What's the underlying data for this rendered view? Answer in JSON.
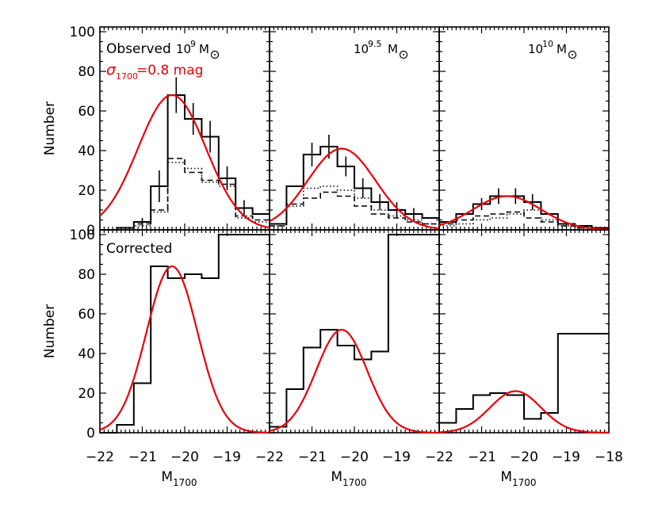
{
  "figure": {
    "ylabel": "Number",
    "xlabel": "M",
    "xlabel_sub": "1700"
  },
  "chart_data": [
    {
      "type": "histogram",
      "row": "observed",
      "col": 0,
      "panel_label": "Observed",
      "mass_label": {
        "base": "10",
        "exp": "9",
        "unit": "M"
      },
      "fit_label": {
        "sym": "σ",
        "sub": "1700",
        "text": "=0.8  mag"
      },
      "xlim": [
        -22,
        -18
      ],
      "ylim": [
        0,
        100
      ],
      "bin_edges": [
        -22.0,
        -21.6,
        -21.2,
        -20.8,
        -20.4,
        -20.0,
        -19.6,
        -19.2,
        -18.8,
        -18.4
      ],
      "series": [
        {
          "values": [
            0,
            1,
            4,
            22,
            68,
            56,
            47,
            26,
            11,
            8
          ],
          "style": "solid",
          "errors": [
            0,
            0,
            2,
            8,
            9,
            8,
            8,
            6,
            4,
            0
          ]
        },
        {
          "values": [
            0,
            1,
            3,
            10,
            36,
            29,
            25,
            23,
            7,
            5
          ],
          "style": "dashed"
        },
        {
          "values": [
            0,
            1,
            2,
            9,
            34,
            31,
            24,
            22,
            6,
            4
          ],
          "style": "dotted"
        }
      ],
      "gaussian": {
        "amplitude": 68,
        "mean": -20.3,
        "sigma": 0.8,
        "color": "#e8000b"
      }
    },
    {
      "type": "histogram",
      "row": "observed",
      "col": 1,
      "mass_label": {
        "base": "10",
        "exp": "9.5",
        "unit": "M"
      },
      "xlim": [
        -22,
        -18
      ],
      "ylim": [
        0,
        100
      ],
      "bin_edges": [
        -22.0,
        -21.6,
        -21.2,
        -20.8,
        -20.4,
        -20.0,
        -19.6,
        -19.2,
        -18.8,
        -18.4
      ],
      "series": [
        {
          "values": [
            3,
            22,
            38,
            42,
            32,
            21,
            14,
            10,
            8,
            6
          ],
          "style": "solid",
          "errors": [
            0,
            0,
            6,
            6,
            5,
            5,
            4,
            4,
            3,
            0
          ]
        },
        {
          "values": [
            2,
            13,
            16,
            19,
            17,
            12,
            8,
            6,
            4,
            3
          ],
          "style": "dashed"
        },
        {
          "values": [
            2,
            12,
            21,
            22,
            20,
            16,
            10,
            7,
            5,
            3
          ],
          "style": "dotted"
        }
      ],
      "gaussian": {
        "amplitude": 41,
        "mean": -20.3,
        "sigma": 0.8,
        "color": "#e8000b"
      }
    },
    {
      "type": "histogram",
      "row": "observed",
      "col": 2,
      "mass_label": {
        "base": "10",
        "exp": "10",
        "unit": "M"
      },
      "xlim": [
        -22,
        -18
      ],
      "ylim": [
        0,
        100
      ],
      "bin_edges": [
        -22.0,
        -21.6,
        -21.2,
        -20.8,
        -20.4,
        -20.0,
        -19.6,
        -19.2,
        -18.8,
        -18.4
      ],
      "series": [
        {
          "values": [
            4,
            8,
            13,
            17,
            17,
            14,
            8,
            3,
            2,
            1
          ],
          "style": "solid",
          "errors": [
            0,
            0,
            3,
            4,
            4,
            4,
            0,
            0,
            0,
            0
          ]
        },
        {
          "values": [
            3,
            5,
            7,
            8,
            9,
            6,
            4,
            2,
            1,
            1
          ],
          "style": "dashed"
        },
        {
          "values": [
            2,
            3,
            5,
            6,
            8,
            10,
            5,
            2,
            1,
            1
          ],
          "style": "dotted"
        }
      ],
      "gaussian": {
        "amplitude": 17,
        "mean": -20.4,
        "sigma": 0.8,
        "color": "#e8000b"
      }
    },
    {
      "type": "histogram",
      "row": "corrected",
      "col": 0,
      "panel_label": "Corrected",
      "xlim": [
        -22,
        -18
      ],
      "ylim": [
        0,
        100
      ],
      "bin_edges": [
        -22.0,
        -21.6,
        -21.2,
        -20.8,
        -20.4,
        -20.0,
        -19.6,
        -19.2,
        -18.8,
        -18.4
      ],
      "series": [
        {
          "values": [
            0,
            4,
            25,
            84,
            78,
            80,
            78,
            100,
            100,
            100
          ],
          "style": "solid"
        }
      ],
      "gaussian": {
        "amplitude": 84,
        "mean": -20.3,
        "sigma": 0.6,
        "color": "#e8000b"
      }
    },
    {
      "type": "histogram",
      "row": "corrected",
      "col": 1,
      "xlim": [
        -22,
        -18
      ],
      "ylim": [
        0,
        100
      ],
      "bin_edges": [
        -22.0,
        -21.6,
        -21.2,
        -20.8,
        -20.4,
        -20.0,
        -19.6,
        -19.2,
        -18.8,
        -18.4
      ],
      "series": [
        {
          "values": [
            3,
            22,
            43,
            52,
            44,
            37,
            41,
            100,
            100,
            100
          ],
          "style": "solid"
        }
      ],
      "gaussian": {
        "amplitude": 52,
        "mean": -20.3,
        "sigma": 0.6,
        "color": "#e8000b"
      }
    },
    {
      "type": "histogram",
      "row": "corrected",
      "col": 2,
      "xlim": [
        -22,
        -18
      ],
      "ylim": [
        0,
        100
      ],
      "bin_edges": [
        -22.0,
        -21.6,
        -21.2,
        -20.8,
        -20.4,
        -20.0,
        -19.6,
        -19.2,
        -18.8,
        -18.4
      ],
      "series": [
        {
          "values": [
            5,
            12,
            19,
            20,
            19,
            7,
            10,
            50,
            50,
            50
          ],
          "style": "solid"
        }
      ],
      "gaussian": {
        "amplitude": 21,
        "mean": -20.2,
        "sigma": 0.6,
        "color": "#e8000b"
      }
    }
  ],
  "axes": {
    "yticks": [
      0,
      20,
      40,
      60,
      80,
      100
    ],
    "xticks": [
      -22,
      -21,
      -20,
      -19,
      -18
    ],
    "ytick_labels": [
      "0",
      "20",
      "40",
      "60",
      "80",
      "100"
    ],
    "xtick_labels": [
      "−22",
      "−21",
      "−20",
      "−19",
      "−22",
      "−21",
      "−20",
      "−19",
      "−22",
      "−21",
      "−20",
      "−19",
      "−18"
    ]
  }
}
